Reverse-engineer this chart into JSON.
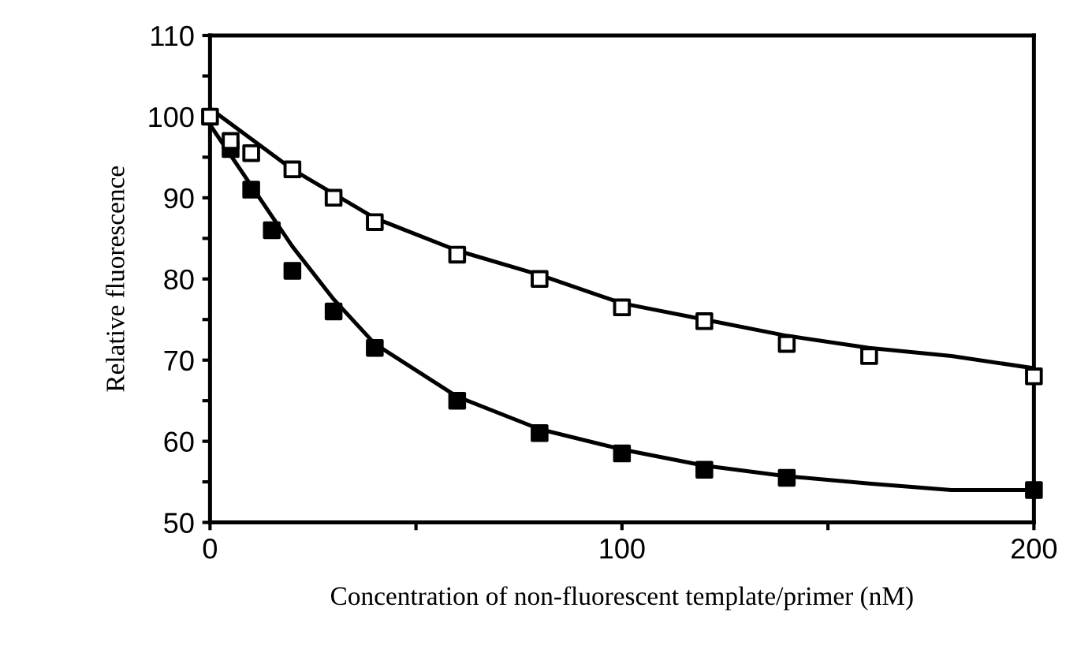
{
  "chart_data": {
    "type": "scatter",
    "xlabel": "Concentration of non-fluorescent template/primer (nM)",
    "ylabel": "Relative fluorescence",
    "xlim": [
      0,
      200
    ],
    "ylim": [
      50,
      110
    ],
    "xticks": [
      0,
      {
        "value": 50,
        "label": null
      },
      100,
      {
        "value": 150,
        "label": null
      },
      200
    ],
    "yticks": [
      50,
      {
        "value": 55,
        "label": null
      },
      60,
      {
        "value": 65,
        "label": null
      },
      70,
      {
        "value": 75,
        "label": null
      },
      80,
      {
        "value": 85,
        "label": null
      },
      90,
      {
        "value": 95,
        "label": null
      },
      100,
      {
        "value": 105,
        "label": null
      },
      110
    ],
    "grid": false,
    "legend": false,
    "series": [
      {
        "type": "line",
        "color": "#000000",
        "marker": "none",
        "x": [
          0,
          20,
          40,
          60,
          80,
          100,
          120,
          140,
          160,
          180,
          200
        ],
        "values": [
          101,
          93.5,
          87.5,
          83.5,
          80.5,
          77,
          75,
          73,
          71.5,
          70.5,
          69
        ]
      },
      {
        "type": "line",
        "color": "#000000",
        "marker": "none",
        "x": [
          0,
          10,
          20,
          30,
          40,
          60,
          80,
          100,
          120,
          140,
          160,
          180,
          200
        ],
        "values": [
          99,
          91.5,
          84,
          77.5,
          72,
          65.5,
          61.5,
          59,
          57,
          55.7,
          54.8,
          54,
          54
        ]
      },
      {
        "color": "#ffffff",
        "marker": "square",
        "x": [
          0,
          5,
          10,
          20,
          30,
          40,
          60,
          80,
          100,
          120,
          140,
          160,
          200
        ],
        "values": [
          100,
          97,
          95.5,
          93.5,
          90,
          87,
          83,
          80,
          76.5,
          74.8,
          72,
          70.5,
          68
        ]
      },
      {
        "color": "#000000",
        "marker": "square",
        "x": [
          5,
          10,
          15,
          20,
          30,
          40,
          60,
          80,
          100,
          120,
          140,
          200
        ],
        "values": [
          96,
          91,
          86,
          81,
          76,
          71.5,
          65,
          61,
          58.5,
          56.5,
          55.5,
          54
        ]
      }
    ]
  }
}
